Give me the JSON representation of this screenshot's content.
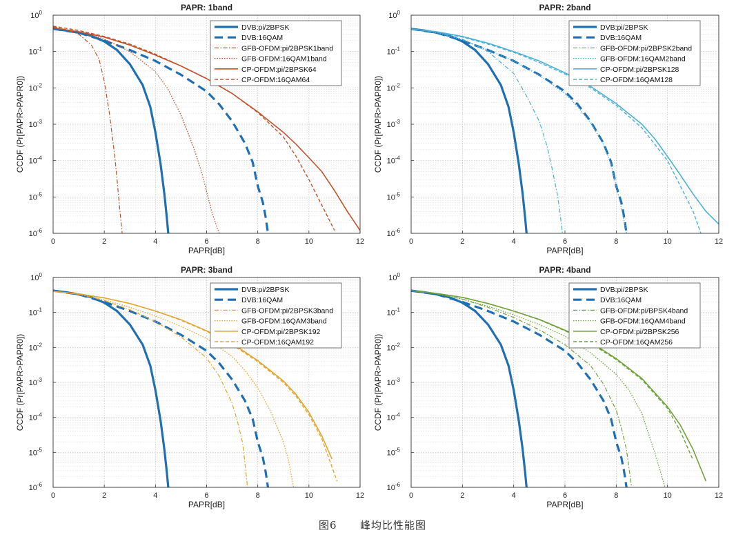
{
  "figure_caption": {
    "label": "图6",
    "text": "峰均比性能图"
  },
  "chart_data": [
    {
      "type": "line",
      "title": "PAPR: 1band",
      "xlabel": "PAPR[dB]",
      "ylabel": "CCDF (Pr[PAPR>PAPR0])",
      "xlim": [
        0,
        12
      ],
      "ylim": [
        1e-06,
        1
      ],
      "yscale": "log",
      "xticks": [
        "0",
        "2",
        "4",
        "6",
        "8",
        "10",
        "12"
      ],
      "yticks": [
        {
          "base": "10",
          "exp": "0"
        },
        {
          "base": "10",
          "exp": "-1"
        },
        {
          "base": "10",
          "exp": "-2"
        },
        {
          "base": "10",
          "exp": "-3"
        },
        {
          "base": "10",
          "exp": "-4"
        },
        {
          "base": "10",
          "exp": "-5"
        },
        {
          "base": "10",
          "exp": "-6"
        }
      ],
      "grid": true,
      "legend_position": "top-right",
      "series": [
        {
          "name": "DVB:pi/2BPSK",
          "color": "#1f6fb2",
          "style": "solid-thick",
          "x": [
            0,
            0.5,
            1,
            1.5,
            2,
            2.5,
            3,
            3.5,
            3.8,
            4,
            4.2,
            4.35,
            4.45,
            4.5
          ],
          "y": [
            0.42,
            0.38,
            0.33,
            0.27,
            0.19,
            0.11,
            0.045,
            0.012,
            0.003,
            0.0006,
            8e-05,
            1.2e-05,
            2.5e-06,
            1e-06
          ]
        },
        {
          "name": "DVB:16QAM",
          "color": "#1f6fb2",
          "style": "dashed-thick",
          "x": [
            0,
            1,
            2,
            3,
            4,
            5,
            6,
            6.5,
            7,
            7.5,
            7.8,
            8,
            8.2,
            8.3,
            8.4
          ],
          "y": [
            0.42,
            0.33,
            0.2,
            0.11,
            0.055,
            0.023,
            0.008,
            0.0035,
            0.0012,
            0.0003,
            9e-05,
            2e-05,
            7e-06,
            3e-06,
            1e-06
          ]
        },
        {
          "name": "GFB-OFDM:pi/2BPSK1band",
          "color": "#c0522a",
          "style": "dashdot",
          "x": [
            0,
            0.5,
            1,
            1.5,
            1.8,
            2,
            2.2,
            2.4,
            2.5,
            2.6,
            2.7
          ],
          "y": [
            0.48,
            0.4,
            0.3,
            0.15,
            0.06,
            0.015,
            0.002,
            0.00015,
            3e-05,
            5e-06,
            1e-06
          ]
        },
        {
          "name": "GFB-OFDM:16QAM1band",
          "color": "#c0522a",
          "style": "dotted",
          "x": [
            0,
            1,
            2,
            3,
            4,
            4.5,
            5,
            5.5,
            5.8,
            6,
            6.2,
            6.4,
            6.5
          ],
          "y": [
            0.45,
            0.35,
            0.22,
            0.1,
            0.028,
            0.009,
            0.0018,
            0.00022,
            5e-05,
            1.4e-05,
            4e-06,
            1.5e-06,
            1e-06
          ]
        },
        {
          "name": "CP-OFDM:pi/2BPSK64",
          "color": "#c0522a",
          "style": "solid",
          "x": [
            0,
            1,
            2,
            3,
            4,
            5,
            6,
            7,
            8,
            9,
            9.5,
            10,
            10.5,
            11,
            11.5,
            12
          ],
          "y": [
            0.45,
            0.35,
            0.25,
            0.15,
            0.08,
            0.04,
            0.018,
            0.007,
            0.0022,
            0.0006,
            0.00028,
            0.00012,
            5e-05,
            1.5e-05,
            4e-06,
            1.2e-06
          ]
        },
        {
          "name": "CP-OFDM:16QAM64",
          "color": "#c0522a",
          "style": "dashed",
          "x": [
            0,
            1,
            2,
            3,
            4,
            5,
            6,
            7,
            8,
            9,
            9.5,
            10,
            10.5,
            11
          ],
          "y": [
            0.5,
            0.38,
            0.26,
            0.16,
            0.085,
            0.04,
            0.018,
            0.007,
            0.0021,
            0.00045,
            0.00013,
            3e-05,
            6e-06,
            1.2e-06
          ]
        }
      ]
    },
    {
      "type": "line",
      "title": "PAPR: 2band",
      "xlabel": "PAPR[dB]",
      "ylabel": "CCDF (Pr[PAPR>PAPR0])",
      "xlim": [
        0,
        12
      ],
      "ylim": [
        1e-06,
        1
      ],
      "yscale": "log",
      "xticks": [
        "0",
        "2",
        "4",
        "6",
        "8",
        "10",
        "12"
      ],
      "yticks": [
        {
          "base": "10",
          "exp": "0"
        },
        {
          "base": "10",
          "exp": "-1"
        },
        {
          "base": "10",
          "exp": "-2"
        },
        {
          "base": "10",
          "exp": "-3"
        },
        {
          "base": "10",
          "exp": "-4"
        },
        {
          "base": "10",
          "exp": "-5"
        },
        {
          "base": "10",
          "exp": "-6"
        }
      ],
      "grid": true,
      "legend_position": "top-right",
      "series": [
        {
          "name": "DVB:pi/2BPSK",
          "color": "#1f6fb2",
          "style": "solid-thick",
          "x": [
            0,
            0.5,
            1,
            1.5,
            2,
            2.5,
            3,
            3.5,
            3.8,
            4,
            4.2,
            4.35,
            4.45,
            4.5
          ],
          "y": [
            0.42,
            0.38,
            0.33,
            0.27,
            0.19,
            0.11,
            0.045,
            0.012,
            0.003,
            0.0006,
            8e-05,
            1.2e-05,
            2.5e-06,
            1e-06
          ]
        },
        {
          "name": "DVB:16QAM",
          "color": "#1f6fb2",
          "style": "dashed-thick",
          "x": [
            0,
            1,
            2,
            3,
            4,
            5,
            6,
            6.5,
            7,
            7.5,
            7.8,
            8,
            8.2,
            8.3,
            8.4
          ],
          "y": [
            0.42,
            0.33,
            0.2,
            0.11,
            0.055,
            0.023,
            0.008,
            0.0035,
            0.0012,
            0.0003,
            9e-05,
            2e-05,
            7e-06,
            3e-06,
            1e-06
          ]
        },
        {
          "name": "GFB-OFDM:pi/2BPSK2band",
          "color": "#4ab0d6",
          "style": "dashdot",
          "x": [
            0,
            1,
            2,
            3,
            4,
            4.5,
            5,
            5.3,
            5.5,
            5.7,
            5.8,
            5.9
          ],
          "y": [
            0.42,
            0.35,
            0.22,
            0.1,
            0.025,
            0.006,
            0.0012,
            0.00025,
            6e-05,
            1.2e-05,
            4e-06,
            1e-06
          ]
        },
        {
          "name": "GFB-OFDM:16QAM2band",
          "color": "#4ab0d6",
          "style": "dotted",
          "x": [
            0,
            1,
            2,
            3,
            4,
            5,
            6,
            6.5,
            7,
            7.5,
            7.8,
            8,
            8.2,
            8.4
          ],
          "y": [
            0.42,
            0.33,
            0.21,
            0.11,
            0.055,
            0.022,
            0.007,
            0.003,
            0.0011,
            0.00028,
            8e-05,
            2e-05,
            5e-06,
            1e-06
          ]
        },
        {
          "name": "CP-OFDM:pi/2BPSK128",
          "color": "#4ab0d6",
          "style": "solid",
          "x": [
            0,
            1,
            2,
            3,
            4,
            5,
            6,
            7,
            8,
            9,
            9.5,
            10,
            10.5,
            11,
            11.5,
            12
          ],
          "y": [
            0.42,
            0.35,
            0.26,
            0.17,
            0.1,
            0.055,
            0.026,
            0.011,
            0.0037,
            0.001,
            0.0004,
            0.00013,
            4e-05,
            1.2e-05,
            4e-06,
            1.8e-06
          ]
        },
        {
          "name": "CP-OFDM:16QAM128",
          "color": "#4ab0d6",
          "style": "dashed",
          "x": [
            0,
            1,
            2,
            3,
            4,
            5,
            6,
            7,
            8,
            9,
            10,
            10.5,
            11,
            11.3
          ],
          "y": [
            0.42,
            0.34,
            0.25,
            0.16,
            0.095,
            0.05,
            0.024,
            0.01,
            0.0033,
            0.0008,
            0.0001,
            2e-05,
            4e-06,
            1e-06
          ]
        }
      ]
    },
    {
      "type": "line",
      "title": "PAPR: 3band",
      "xlabel": "PAPR[dB]",
      "ylabel": "CCDF (Pr[PAPR>PAPR0])",
      "xlim": [
        0,
        12
      ],
      "ylim": [
        1e-06,
        1
      ],
      "yscale": "log",
      "xticks": [
        "0",
        "2",
        "4",
        "6",
        "8",
        "10",
        "12"
      ],
      "yticks": [
        {
          "base": "10",
          "exp": "0"
        },
        {
          "base": "10",
          "exp": "-1"
        },
        {
          "base": "10",
          "exp": "-2"
        },
        {
          "base": "10",
          "exp": "-3"
        },
        {
          "base": "10",
          "exp": "-4"
        },
        {
          "base": "10",
          "exp": "-5"
        },
        {
          "base": "10",
          "exp": "-6"
        }
      ],
      "grid": true,
      "legend_position": "top-right",
      "series": [
        {
          "name": "DVB:pi/2BPSK",
          "color": "#1f6fb2",
          "style": "solid-thick",
          "x": [
            0,
            0.5,
            1,
            1.5,
            2,
            2.5,
            3,
            3.5,
            3.8,
            4,
            4.2,
            4.35,
            4.45,
            4.5
          ],
          "y": [
            0.42,
            0.38,
            0.33,
            0.27,
            0.19,
            0.11,
            0.045,
            0.012,
            0.003,
            0.0006,
            8e-05,
            1.2e-05,
            2.5e-06,
            1e-06
          ]
        },
        {
          "name": "DVB:16QAM",
          "color": "#1f6fb2",
          "style": "dashed-thick",
          "x": [
            0,
            1,
            2,
            3,
            4,
            5,
            6,
            6.5,
            7,
            7.5,
            7.8,
            8,
            8.2,
            8.3,
            8.4
          ],
          "y": [
            0.42,
            0.33,
            0.2,
            0.11,
            0.055,
            0.023,
            0.008,
            0.0035,
            0.0012,
            0.0003,
            9e-05,
            2e-05,
            7e-06,
            3e-06,
            1e-06
          ]
        },
        {
          "name": "GFB-OFDM:pi/2BPSK3band",
          "color": "#e3a52f",
          "style": "dashdot",
          "x": [
            0,
            1,
            2,
            3,
            4,
            5,
            6,
            6.5,
            7,
            7.2,
            7.4,
            7.5,
            7.6
          ],
          "y": [
            0.4,
            0.33,
            0.22,
            0.12,
            0.055,
            0.02,
            0.005,
            0.0015,
            0.00025,
            8e-05,
            2e-05,
            5e-06,
            1e-06
          ]
        },
        {
          "name": "GFB-OFDM:16QAM3band",
          "color": "#e3a52f",
          "style": "dotted",
          "x": [
            0,
            1,
            2,
            3,
            4,
            5,
            6,
            7,
            7.5,
            8,
            8.5,
            9,
            9.2,
            9.4
          ],
          "y": [
            0.4,
            0.33,
            0.23,
            0.14,
            0.08,
            0.04,
            0.018,
            0.0055,
            0.0022,
            0.0007,
            0.00015,
            2e-05,
            6e-06,
            1e-06
          ]
        },
        {
          "name": "CP-OFDM:pi/2BPSK192",
          "color": "#e3a52f",
          "style": "solid",
          "x": [
            0,
            1,
            2,
            3,
            4,
            5,
            6,
            7,
            8,
            9,
            9.5,
            10,
            10.5,
            10.9
          ],
          "y": [
            0.4,
            0.34,
            0.26,
            0.18,
            0.11,
            0.062,
            0.03,
            0.013,
            0.0042,
            0.0011,
            0.00045,
            0.00014,
            3e-05,
            6.5e-06
          ]
        },
        {
          "name": "CP-OFDM:16QAM192",
          "color": "#e3a52f",
          "style": "dashed",
          "x": [
            0,
            1,
            2,
            3,
            4,
            5,
            6,
            7,
            8,
            9,
            9.5,
            10,
            10.5,
            11.1
          ],
          "y": [
            0.4,
            0.34,
            0.26,
            0.18,
            0.11,
            0.06,
            0.029,
            0.012,
            0.0039,
            0.001,
            0.0004,
            0.00012,
            2.5e-05,
            1.5e-06
          ]
        }
      ]
    },
    {
      "type": "line",
      "title": "PAPR: 4band",
      "xlabel": "PAPR[dB]",
      "ylabel": "CCDF (Pr[PAPR>PAPR0])",
      "xlim": [
        0,
        12
      ],
      "ylim": [
        1e-06,
        1
      ],
      "yscale": "log",
      "xticks": [
        "0",
        "2",
        "4",
        "6",
        "8",
        "10",
        "12"
      ],
      "yticks": [
        {
          "base": "10",
          "exp": "0"
        },
        {
          "base": "10",
          "exp": "-1"
        },
        {
          "base": "10",
          "exp": "-2"
        },
        {
          "base": "10",
          "exp": "-3"
        },
        {
          "base": "10",
          "exp": "-4"
        },
        {
          "base": "10",
          "exp": "-5"
        },
        {
          "base": "10",
          "exp": "-6"
        }
      ],
      "grid": true,
      "legend_position": "top-right",
      "series": [
        {
          "name": "DVB:pi/2BPSK",
          "color": "#1f6fb2",
          "style": "solid-thick",
          "x": [
            0,
            0.5,
            1,
            1.5,
            2,
            2.5,
            3,
            3.5,
            3.8,
            4,
            4.2,
            4.35,
            4.45,
            4.5
          ],
          "y": [
            0.42,
            0.38,
            0.33,
            0.27,
            0.19,
            0.11,
            0.045,
            0.012,
            0.003,
            0.0006,
            8e-05,
            1.2e-05,
            2.5e-06,
            1e-06
          ]
        },
        {
          "name": "DVB:16QAM",
          "color": "#1f6fb2",
          "style": "dashed-thick",
          "x": [
            0,
            1,
            2,
            3,
            4,
            5,
            6,
            6.5,
            7,
            7.5,
            7.8,
            8,
            8.2,
            8.3,
            8.4
          ],
          "y": [
            0.42,
            0.33,
            0.2,
            0.11,
            0.055,
            0.023,
            0.008,
            0.0035,
            0.0012,
            0.0003,
            9e-05,
            2e-05,
            7e-06,
            3e-06,
            1e-06
          ]
        },
        {
          "name": "GFB-OFDM:pi/BPSK4band",
          "color": "#6fa33a",
          "style": "dashdot",
          "x": [
            0,
            1,
            2,
            3,
            4,
            5,
            6,
            7,
            7.5,
            8,
            8.2,
            8.4,
            8.6
          ],
          "y": [
            0.42,
            0.34,
            0.24,
            0.14,
            0.072,
            0.032,
            0.012,
            0.003,
            0.0009,
            0.00016,
            5e-05,
            1.2e-05,
            1e-06
          ]
        },
        {
          "name": "GFB-OFDM:16QAM4band",
          "color": "#6fa33a",
          "style": "dotted",
          "x": [
            0,
            1,
            2,
            3,
            4,
            5,
            6,
            7,
            8,
            8.5,
            9,
            9.5,
            9.9
          ],
          "y": [
            0.42,
            0.34,
            0.24,
            0.15,
            0.085,
            0.045,
            0.021,
            0.007,
            0.0017,
            0.0006,
            0.00013,
            1e-05,
            1e-06
          ]
        },
        {
          "name": "CP-OFDM:pi/2BPSK256",
          "color": "#6fa33a",
          "style": "solid",
          "x": [
            0,
            1,
            2,
            3,
            4,
            5,
            6,
            7,
            8,
            9,
            10,
            10.5,
            11,
            11.5
          ],
          "y": [
            0.42,
            0.35,
            0.27,
            0.18,
            0.11,
            0.063,
            0.031,
            0.014,
            0.0048,
            0.0013,
            0.0002,
            6e-05,
            1.2e-05,
            1.5e-06
          ]
        },
        {
          "name": "CP-OFDM:16QAM256",
          "color": "#6fa33a",
          "style": "dashed",
          "x": [
            0,
            1,
            2,
            3,
            4,
            5,
            6,
            7,
            8,
            9,
            10,
            10.5,
            11
          ],
          "y": [
            0.42,
            0.35,
            0.27,
            0.18,
            0.11,
            0.062,
            0.03,
            0.013,
            0.0045,
            0.0012,
            0.00018,
            4e-05,
            6e-06
          ]
        }
      ]
    }
  ]
}
